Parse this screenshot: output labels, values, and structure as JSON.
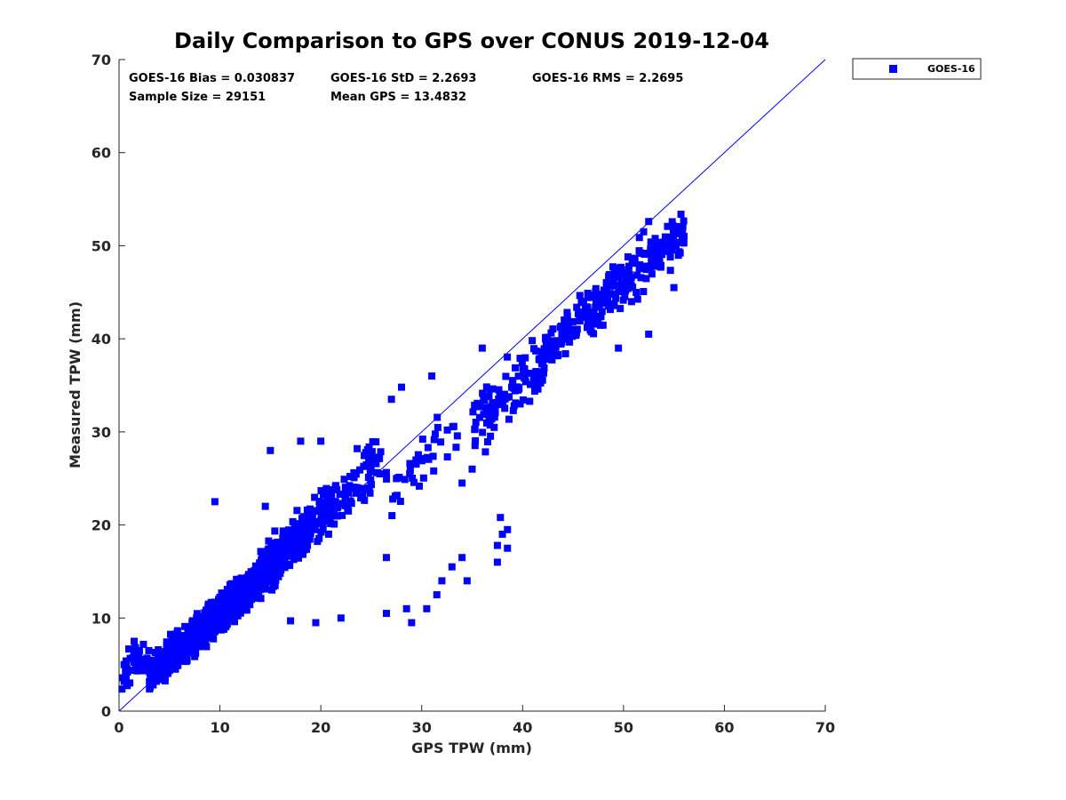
{
  "chart_data": {
    "type": "scatter",
    "title": "Daily Comparison to GPS over CONUS 2019-12-04",
    "xlabel": "GPS TPW (mm)",
    "ylabel": "Measured TPW (mm)",
    "xlim": [
      0,
      70
    ],
    "ylim": [
      0,
      70
    ],
    "xticks": [
      0,
      10,
      20,
      30,
      40,
      50,
      60,
      70
    ],
    "yticks": [
      0,
      10,
      20,
      30,
      40,
      50,
      60,
      70
    ],
    "grid": false,
    "legend_position": "outside-top-right",
    "reference_line": {
      "name": "1:1 line",
      "from": [
        0,
        0
      ],
      "to": [
        70,
        70
      ],
      "color": "#0000ff"
    },
    "stats": {
      "bias": "GOES-16 Bias = 0.030837",
      "std": "GOES-16 StD = 2.2693",
      "rms": "GOES-16 RMS = 2.2695",
      "sample_size": "Sample Size = 29151",
      "mean_gps": "Mean GPS = 13.4832"
    },
    "series": [
      {
        "name": "GOES-16",
        "color": "#0000ff",
        "marker": "square",
        "sample_size": 29151,
        "clusters": [
          {
            "x_range": [
              0,
              3
            ],
            "slope": 1.0,
            "offset": 3.5,
            "spread": 1.6,
            "count": 40
          },
          {
            "x_range": [
              3,
              9
            ],
            "slope": 0.95,
            "offset": 1.0,
            "spread": 1.5,
            "count": 450
          },
          {
            "x_range": [
              9,
              14
            ],
            "slope": 1.0,
            "offset": 0.3,
            "spread": 1.5,
            "count": 500
          },
          {
            "x_range": [
              14,
              19
            ],
            "slope": 1.08,
            "offset": -0.5,
            "spread": 1.8,
            "count": 320
          },
          {
            "x_range": [
              19,
              26
            ],
            "slope": 1.08,
            "offset": -0.5,
            "spread": 2.2,
            "count": 130
          },
          {
            "x_range": [
              26,
              34
            ],
            "slope": 0.95,
            "offset": -2.0,
            "spread": 3.0,
            "count": 40
          },
          {
            "x_range": [
              35,
              42
            ],
            "slope": 0.93,
            "offset": -2.0,
            "spread": 2.5,
            "count": 110
          },
          {
            "x_range": [
              42,
              56
            ],
            "slope": 0.93,
            "offset": -0.5,
            "spread": 2.0,
            "count": 300
          }
        ],
        "notable_points": [
          [
            0.5,
            5.0
          ],
          [
            0.5,
            3.2
          ],
          [
            1.5,
            7.5
          ],
          [
            2.0,
            6.5
          ],
          [
            9.5,
            22.5
          ],
          [
            14.5,
            22.0
          ],
          [
            15.0,
            28.0
          ],
          [
            18.0,
            29.0
          ],
          [
            20.0,
            29.0
          ],
          [
            28.0,
            34.8
          ],
          [
            27.0,
            33.5
          ],
          [
            26.5,
            10.5
          ],
          [
            28.5,
            11.0
          ],
          [
            30.5,
            11.0
          ],
          [
            29.0,
            9.5
          ],
          [
            31.5,
            12.5
          ],
          [
            32.0,
            14.0
          ],
          [
            33.0,
            15.5
          ],
          [
            34.5,
            14.0
          ],
          [
            34.0,
            16.5
          ],
          [
            37.5,
            16.0
          ],
          [
            37.5,
            17.8
          ],
          [
            38.0,
            19.0
          ],
          [
            38.5,
            19.5
          ],
          [
            38.5,
            17.5
          ],
          [
            37.8,
            20.8
          ],
          [
            22.0,
            10.0
          ],
          [
            19.5,
            9.5
          ],
          [
            17.0,
            9.7
          ],
          [
            35.0,
            26.0
          ],
          [
            34.0,
            24.5
          ],
          [
            31.0,
            36.0
          ],
          [
            36.0,
            39.0
          ],
          [
            52.0,
            51.5
          ],
          [
            52.5,
            52.6
          ],
          [
            52.5,
            40.5
          ],
          [
            55.5,
            51.7
          ],
          [
            56.0,
            51.0
          ],
          [
            55.0,
            45.5
          ],
          [
            49.5,
            39.0
          ],
          [
            26.5,
            16.5
          ]
        ]
      }
    ]
  }
}
